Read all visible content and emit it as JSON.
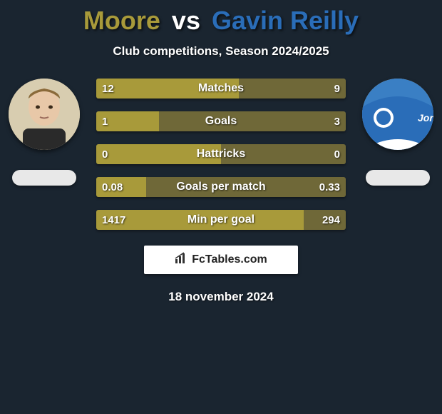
{
  "title": {
    "player1": "Moore",
    "vs": "vs",
    "player2": "Gavin Reilly"
  },
  "subtitle": "Club competitions, Season 2024/2025",
  "colors": {
    "player1_accent": "#a89a3a",
    "player2_accent": "#2a6db8",
    "bar_neutral": "#8f8548",
    "background": "#1a2530",
    "text": "#ffffff"
  },
  "player1": {
    "name": "Moore",
    "avatar_bg": "#d4c9a8"
  },
  "player2": {
    "name": "Gavin Reilly",
    "avatar_bg": "#3a7fc4"
  },
  "stats": [
    {
      "label": "Matches",
      "left_value": "12",
      "right_value": "9",
      "left_pct": 57,
      "right_pct": 43,
      "left_color": "#a89a3a",
      "right_color": "#6f6838"
    },
    {
      "label": "Goals",
      "left_value": "1",
      "right_value": "3",
      "left_pct": 25,
      "right_pct": 75,
      "left_color": "#a89a3a",
      "right_color": "#6f6838"
    },
    {
      "label": "Hattricks",
      "left_value": "0",
      "right_value": "0",
      "left_pct": 50,
      "right_pct": 50,
      "left_color": "#a89a3a",
      "right_color": "#6f6838"
    },
    {
      "label": "Goals per match",
      "left_value": "0.08",
      "right_value": "0.33",
      "left_pct": 20,
      "right_pct": 80,
      "left_color": "#a89a3a",
      "right_color": "#6f6838"
    },
    {
      "label": "Min per goal",
      "left_value": "1417",
      "right_value": "294",
      "left_pct": 83,
      "right_pct": 17,
      "left_color": "#a89a3a",
      "right_color": "#6f6838"
    }
  ],
  "footer": {
    "logo_text": "FcTables.com",
    "date": "18 november 2024"
  }
}
